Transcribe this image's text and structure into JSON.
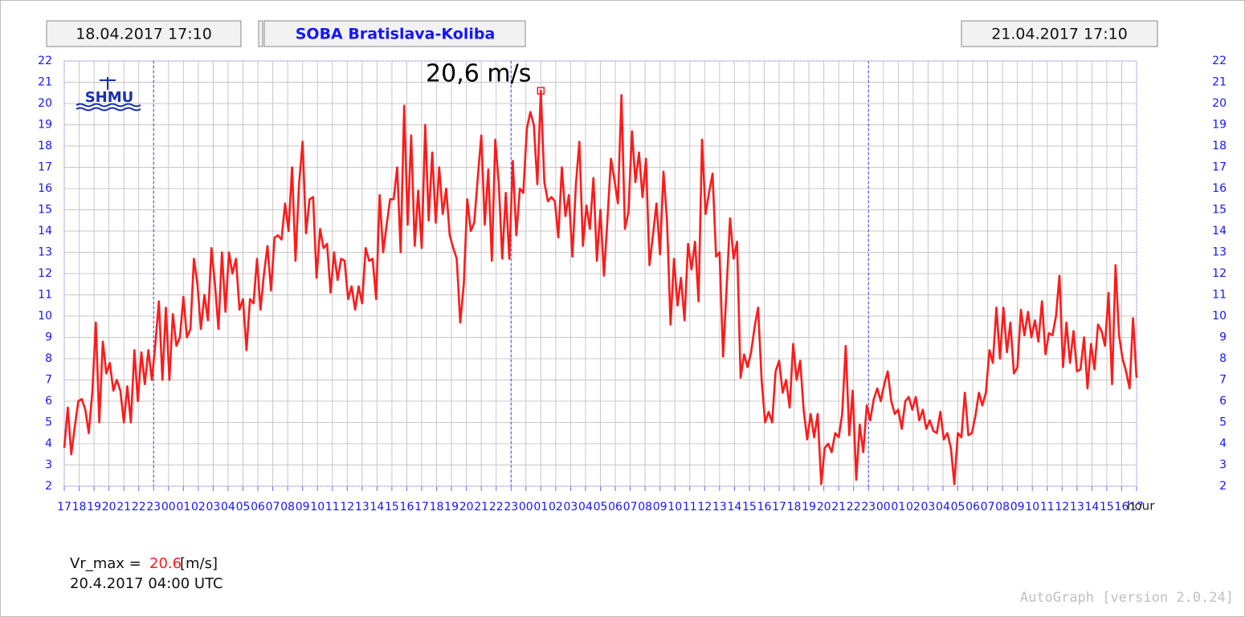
{
  "chart_data": {
    "type": "line",
    "start_time": "18.04.2017 17:10",
    "title": "SOBA Bratislava-Koliba",
    "end_time": "21.04.2017 17:10",
    "logo": "SHMU",
    "annotation": "20,6 m/s",
    "x_label": "hour",
    "footer_label": "Vr_max =",
    "footer_value": 20.6,
    "footer_unit": "[m/s]",
    "footer_time": "20.4.2017 04:00 UTC",
    "credit": "AutoGraph [version 2.0.24]",
    "grid": true,
    "xlim": [
      0,
      72
    ],
    "ylim": [
      2,
      22
    ],
    "yticks": [
      2,
      3,
      4,
      5,
      6,
      7,
      8,
      9,
      10,
      11,
      12,
      13,
      14,
      15,
      16,
      17,
      18,
      19,
      20,
      21,
      22
    ],
    "day_separators": [
      6,
      30,
      54
    ],
    "xticks": [
      {
        "value": 0,
        "label": "17"
      },
      {
        "value": 1,
        "label": "18"
      },
      {
        "value": 2,
        "label": "19"
      },
      {
        "value": 3,
        "label": "20"
      },
      {
        "value": 4,
        "label": "21"
      },
      {
        "value": 5,
        "label": "22"
      },
      {
        "value": 6,
        "label": "23"
      },
      {
        "value": 7,
        "label": "00"
      },
      {
        "value": 8,
        "label": "01"
      },
      {
        "value": 9,
        "label": "02"
      },
      {
        "value": 10,
        "label": "03"
      },
      {
        "value": 11,
        "label": "04"
      },
      {
        "value": 12,
        "label": "05"
      },
      {
        "value": 13,
        "label": "06"
      },
      {
        "value": 14,
        "label": "07"
      },
      {
        "value": 15,
        "label": "08"
      },
      {
        "value": 16,
        "label": "09"
      },
      {
        "value": 17,
        "label": "10"
      },
      {
        "value": 18,
        "label": "11"
      },
      {
        "value": 19,
        "label": "12"
      },
      {
        "value": 20,
        "label": "13"
      },
      {
        "value": 21,
        "label": "14"
      },
      {
        "value": 22,
        "label": "15"
      },
      {
        "value": 23,
        "label": "16"
      },
      {
        "value": 24,
        "label": "17"
      },
      {
        "value": 25,
        "label": "18"
      },
      {
        "value": 26,
        "label": "19"
      },
      {
        "value": 27,
        "label": "20"
      },
      {
        "value": 28,
        "label": "21"
      },
      {
        "value": 29,
        "label": "22"
      },
      {
        "value": 30,
        "label": "23"
      },
      {
        "value": 31,
        "label": "00"
      },
      {
        "value": 32,
        "label": "01"
      },
      {
        "value": 33,
        "label": "02"
      },
      {
        "value": 34,
        "label": "03"
      },
      {
        "value": 35,
        "label": "04"
      },
      {
        "value": 36,
        "label": "05"
      },
      {
        "value": 37,
        "label": "06"
      },
      {
        "value": 38,
        "label": "07"
      },
      {
        "value": 39,
        "label": "08"
      },
      {
        "value": 40,
        "label": "09"
      },
      {
        "value": 41,
        "label": "10"
      },
      {
        "value": 42,
        "label": "11"
      },
      {
        "value": 43,
        "label": "12"
      },
      {
        "value": 44,
        "label": "13"
      },
      {
        "value": 45,
        "label": "14"
      },
      {
        "value": 46,
        "label": "15"
      },
      {
        "value": 47,
        "label": "16"
      },
      {
        "value": 48,
        "label": "17"
      },
      {
        "value": 49,
        "label": "18"
      },
      {
        "value": 50,
        "label": "19"
      },
      {
        "value": 51,
        "label": "20"
      },
      {
        "value": 52,
        "label": "21"
      },
      {
        "value": 53,
        "label": "22"
      },
      {
        "value": 54,
        "label": "23"
      },
      {
        "value": 55,
        "label": "00"
      },
      {
        "value": 56,
        "label": "01"
      },
      {
        "value": 57,
        "label": "02"
      },
      {
        "value": 58,
        "label": "03"
      },
      {
        "value": 59,
        "label": "04"
      },
      {
        "value": 60,
        "label": "05"
      },
      {
        "value": 61,
        "label": "06"
      },
      {
        "value": 62,
        "label": "07"
      },
      {
        "value": 63,
        "label": "08"
      },
      {
        "value": 64,
        "label": "09"
      },
      {
        "value": 65,
        "label": "10"
      },
      {
        "value": 66,
        "label": "11"
      },
      {
        "value": 67,
        "label": "12"
      },
      {
        "value": 68,
        "label": "13"
      },
      {
        "value": 69,
        "label": "14"
      },
      {
        "value": 70,
        "label": "15"
      },
      {
        "value": 71,
        "label": "16"
      },
      {
        "value": 72,
        "label": "17"
      }
    ],
    "series": [
      {
        "name": "Vr_max",
        "color": "#ff1a1a",
        "values": [
          3.8,
          5.7,
          3.5,
          4.8,
          6.0,
          6.1,
          5.6,
          4.5,
          6.4,
          9.7,
          5.0,
          8.8,
          7.3,
          7.8,
          6.5,
          7.0,
          6.5,
          5.0,
          6.7,
          5.0,
          8.4,
          6.0,
          8.3,
          6.8,
          8.4,
          7.0,
          8.7,
          10.7,
          7.0,
          10.4,
          7.0,
          10.1,
          8.6,
          9.0,
          10.9,
          9.0,
          9.4,
          12.7,
          11.5,
          9.4,
          11.0,
          9.8,
          13.2,
          11.5,
          9.4,
          13.0,
          10.2,
          13.0,
          12.0,
          12.7,
          10.3,
          10.8,
          8.4,
          10.8,
          10.6,
          12.7,
          10.3,
          12.0,
          13.3,
          11.2,
          13.7,
          13.8,
          13.6,
          15.3,
          14.0,
          17.0,
          12.6,
          16.2,
          18.2,
          13.9,
          15.5,
          15.6,
          11.8,
          14.1,
          13.2,
          13.4,
          11.1,
          13.0,
          11.7,
          12.7,
          12.6,
          10.8,
          11.4,
          10.3,
          11.4,
          10.6,
          13.2,
          12.6,
          12.7,
          10.8,
          15.7,
          13.0,
          14.3,
          15.5,
          15.5,
          17.0,
          13.0,
          19.9,
          14.3,
          18.5,
          13.3,
          15.9,
          13.2,
          19.0,
          14.5,
          17.7,
          14.4,
          17.0,
          14.8,
          16.0,
          13.8,
          13.2,
          12.7,
          9.7,
          11.5,
          15.5,
          14.0,
          14.4,
          16.5,
          18.5,
          14.3,
          16.9,
          12.6,
          18.3,
          16.2,
          12.7,
          15.8,
          12.7,
          17.3,
          13.8,
          16.0,
          15.8,
          18.8,
          19.6,
          19.0,
          16.2,
          20.6,
          16.3,
          15.4,
          15.6,
          15.4,
          13.7,
          17.0,
          14.7,
          15.7,
          12.8,
          16.2,
          18.2,
          13.3,
          15.2,
          14.1,
          16.5,
          12.6,
          15.0,
          11.9,
          14.5,
          17.4,
          16.4,
          15.3,
          20.4,
          14.1,
          14.9,
          18.7,
          16.3,
          17.7,
          15.6,
          17.4,
          12.4,
          13.8,
          15.3,
          12.9,
          16.8,
          14.5,
          9.6,
          12.7,
          10.5,
          11.8,
          9.8,
          13.4,
          12.2,
          13.5,
          10.7,
          18.3,
          14.8,
          15.8,
          16.7,
          12.8,
          13.0,
          8.1,
          11.3,
          14.6,
          12.7,
          13.5,
          7.1,
          8.2,
          7.6,
          8.3,
          9.5,
          10.4,
          7.0,
          5.0,
          5.5,
          5.0,
          7.4,
          7.9,
          6.4,
          7.0,
          5.7,
          8.7,
          7.0,
          7.9,
          5.6,
          4.2,
          5.4,
          4.3,
          5.4,
          2.1,
          3.8,
          4.0,
          3.6,
          4.5,
          4.3,
          5.4,
          8.6,
          4.4,
          6.5,
          2.3,
          4.9,
          3.6,
          5.8,
          5.1,
          6.1,
          6.6,
          6.0,
          6.8,
          7.4,
          6.0,
          5.4,
          5.6,
          4.7,
          6.0,
          6.2,
          5.6,
          6.2,
          5.1,
          5.6,
          4.7,
          5.1,
          4.6,
          4.5,
          5.5,
          4.2,
          4.5,
          3.8,
          2.1,
          4.5,
          4.3,
          6.4,
          4.4,
          4.5,
          5.3,
          6.4,
          5.8,
          6.4,
          8.4,
          7.8,
          10.4,
          8.0,
          10.4,
          8.3,
          9.7,
          7.3,
          7.6,
          10.3,
          9.1,
          10.2,
          9.0,
          9.8,
          8.8,
          10.7,
          8.2,
          9.2,
          9.1,
          10.0,
          11.9,
          7.6,
          9.7,
          7.8,
          9.3,
          7.4,
          7.5,
          9.0,
          6.6,
          8.7,
          7.5,
          9.6,
          9.3,
          8.6,
          11.1,
          6.8,
          12.4,
          9.1,
          8.0,
          7.4,
          6.6,
          9.9,
          7.1
        ]
      }
    ]
  }
}
